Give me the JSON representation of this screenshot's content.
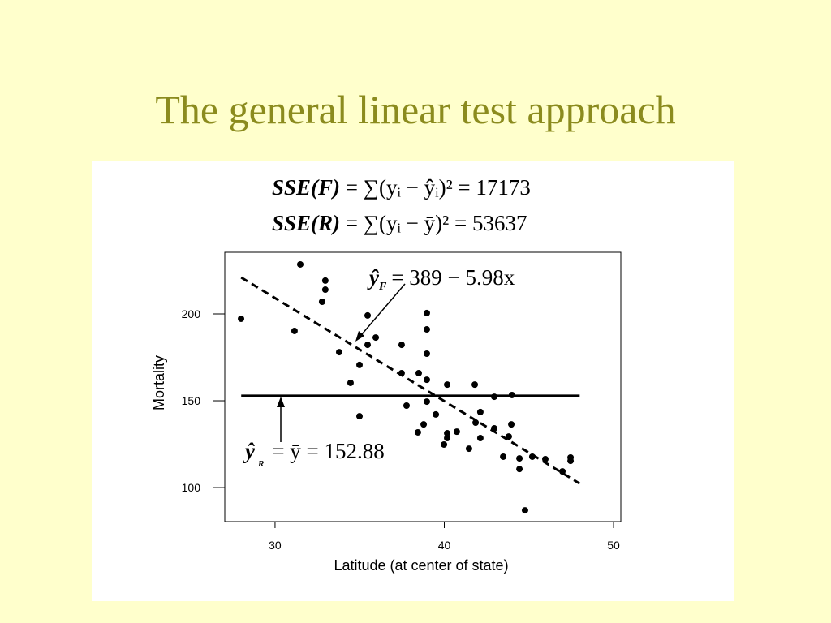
{
  "chart_data": {
    "type": "scatter",
    "title": "The general linear test approach",
    "equations": [
      {
        "lhs": "SSE(F)",
        "rhs": "= ∑(yᵢ − ŷᵢ)² = 17173"
      },
      {
        "lhs": "SSE(R)",
        "rhs": "= ∑(yᵢ − ȳ)² = 53637"
      }
    ],
    "annotations": [
      {
        "symbol": "ŷ",
        "sub": "F",
        "rhs": "= 389 − 5.98x"
      },
      {
        "symbol": "ŷ",
        "sub": "R",
        "rhs": "= ȳ = 152.88"
      }
    ],
    "x_label": "Latitude (at center of state)",
    "y_label": "Mortality",
    "xlim": [
      27.03,
      50.43
    ],
    "ylim": [
      80.4,
      235.5
    ],
    "xticks": [
      30,
      40,
      50
    ],
    "yticks": [
      100,
      150,
      200
    ],
    "color": "#000000",
    "x": [
      27.99,
      31.49,
      31.15,
      32.97,
      32.97,
      32.78,
      33.79,
      34.46,
      34.99,
      34.99,
      35.47,
      35.47,
      35.95,
      37.48,
      37.48,
      37.77,
      38.49,
      38.44,
      38.78,
      38.97,
      38.97,
      38.97,
      38.97,
      38.97,
      39.5,
      39.98,
      40.17,
      40.17,
      40.17,
      40.74,
      41.46,
      41.8,
      41.85,
      42.13,
      42.13,
      42.95,
      42.95,
      43.48,
      43.81,
      43.96,
      44.0,
      44.44,
      44.44,
      44.77,
      45.2,
      45.97,
      46.98,
      47.46,
      47.46
    ],
    "y": [
      197.2,
      228.5,
      190.2,
      219.2,
      214.0,
      207.0,
      178.0,
      160.3,
      170.6,
      141.1,
      199.1,
      182.2,
      186.4,
      182.2,
      165.9,
      147.2,
      165.9,
      131.8,
      136.4,
      200.5,
      191.1,
      177.1,
      162.1,
      149.5,
      142.1,
      124.8,
      159.3,
      131.3,
      128.5,
      132.2,
      122.4,
      159.3,
      137.4,
      143.5,
      128.5,
      152.3,
      134.1,
      117.8,
      129.4,
      136.4,
      153.3,
      116.8,
      110.7,
      86.9,
      117.8,
      116.4,
      109.3,
      117.3,
      115.4
    ],
    "lines": [
      {
        "x": [
          28,
          48
        ],
        "y": [
          221,
          102.3
        ],
        "dashed": true
      },
      {
        "x": [
          28,
          48
        ],
        "y": [
          152.88,
          152.88
        ],
        "dashed": false
      }
    ]
  }
}
